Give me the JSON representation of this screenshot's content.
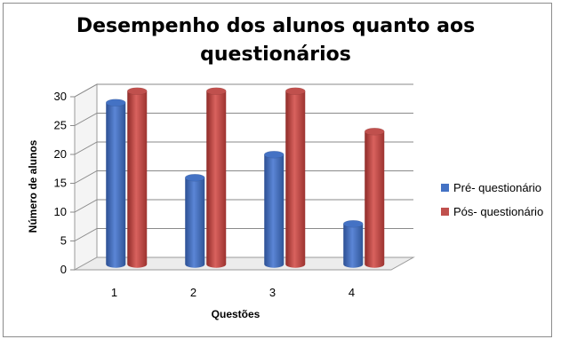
{
  "chart_data": {
    "type": "bar",
    "title_lines": [
      "Desempenho dos alunos quanto aos",
      "questionários"
    ],
    "xlabel": "Questões",
    "ylabel": "Número de alunos",
    "categories": [
      "1",
      "2",
      "3",
      "4"
    ],
    "ylim": [
      0,
      30
    ],
    "yticks": [
      "0",
      "5",
      "10",
      "15",
      "20",
      "25",
      "30"
    ],
    "grid": true,
    "legend_position": "right",
    "series": [
      {
        "name": "Pré- questionário",
        "color": "#4472c4",
        "values": [
          28,
          15,
          19,
          7
        ]
      },
      {
        "name": "Pós- questionário",
        "color": "#c0504d",
        "values": [
          30,
          30,
          30,
          23
        ]
      }
    ]
  }
}
